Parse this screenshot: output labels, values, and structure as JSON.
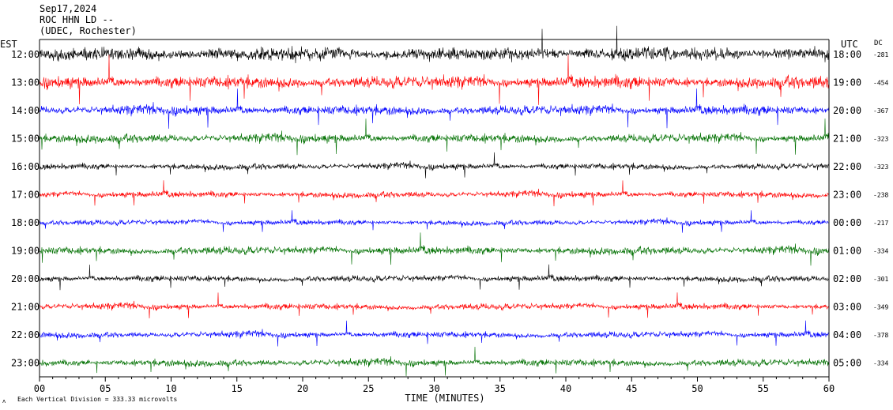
{
  "header": {
    "date": "Sep17,2024",
    "station": "ROC HHN LD --",
    "location": "(UDEC, Rochester)"
  },
  "labels": {
    "left_zone": "EST",
    "right_zone": "UTC",
    "dc": "DC",
    "xlabel": "TIME (MINUTES)",
    "footer": "Each Vertical Division =  333.33 microvolts"
  },
  "colors": {
    "cycle": [
      "#000000",
      "#ff0000",
      "#0000ff",
      "#007000"
    ]
  },
  "chart_data": {
    "type": "line",
    "title": "Sep17,2024 ROC HHN LD -- (UDEC, Rochester)",
    "xlabel": "TIME (MINUTES)",
    "xlim": [
      0,
      60
    ],
    "xticks": [
      "00",
      "05",
      "10",
      "15",
      "20",
      "25",
      "30",
      "35",
      "40",
      "45",
      "50",
      "55",
      "60"
    ],
    "traces": [
      {
        "est": "12:00",
        "utc": "18:00",
        "dc": "-281",
        "color": "#000000"
      },
      {
        "est": "13:00",
        "utc": "19:00",
        "dc": "-454",
        "color": "#ff0000"
      },
      {
        "est": "14:00",
        "utc": "20:00",
        "dc": "-367",
        "color": "#0000ff"
      },
      {
        "est": "15:00",
        "utc": "21:00",
        "dc": "-323",
        "color": "#007000"
      },
      {
        "est": "16:00",
        "utc": "22:00",
        "dc": "-323",
        "color": "#000000"
      },
      {
        "est": "17:00",
        "utc": "23:00",
        "dc": "-238",
        "color": "#ff0000"
      },
      {
        "est": "18:00",
        "utc": "00:00",
        "dc": "-217",
        "color": "#0000ff"
      },
      {
        "est": "19:00",
        "utc": "01:00",
        "dc": "-334",
        "color": "#007000"
      },
      {
        "est": "20:00",
        "utc": "02:00",
        "dc": "-301",
        "color": "#000000"
      },
      {
        "est": "21:00",
        "utc": "03:00",
        "dc": "-349",
        "color": "#ff0000"
      },
      {
        "est": "22:00",
        "utc": "04:00",
        "dc": "-378",
        "color": "#0000ff"
      },
      {
        "est": "23:00",
        "utc": "05:00",
        "dc": "-334",
        "color": "#007000"
      }
    ],
    "grid": false
  }
}
